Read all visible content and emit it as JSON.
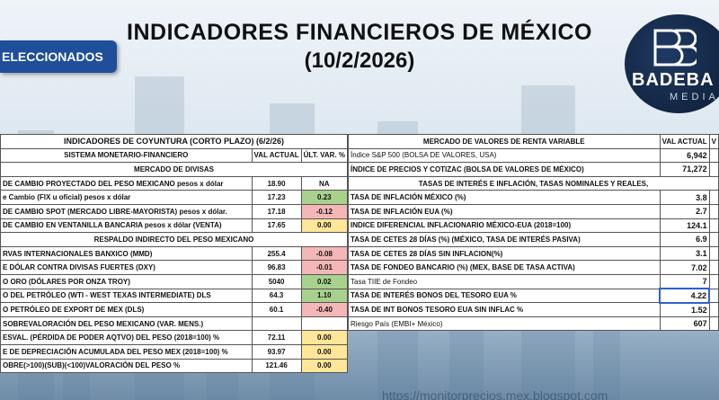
{
  "header": {
    "title": "INDICADORES FINANCIEROS DE MÉXICO",
    "date": "(10/2/2026)",
    "banner": "ELECCIONADOS"
  },
  "logo": {
    "brand": "BADEBA",
    "sub": "MEDIA"
  },
  "left_table": {
    "title": "INDICADORES DE COYUNTURA (CORTO PLAZO) (6/2/26)",
    "sys_label": "SISTEMA MONETARIO-FINANCIERO",
    "col_val": "VAL ACTUAL",
    "col_var": "ÚLT. VAR. %",
    "sections": [
      {
        "name": "MERCADO DE DIVISAS"
      },
      {
        "name": "RESPALDO INDIRECTO DEL PESO MEXICANO"
      }
    ],
    "rows": [
      {
        "label": "DE CAMBIO PROYECTADO DEL PESO MEXICANO pesos x dólar",
        "val": "18.90",
        "var": "NA",
        "color": "none"
      },
      {
        "label": "e Cambio (FIX u oficial) pesos x dólar",
        "val": "17.23",
        "var": "0.23",
        "color": "green"
      },
      {
        "label": "DE CAMBIO SPOT (MERCADO LIBRE-MAYORISTA) pesos x dólar.",
        "val": "17.18",
        "var": "-0.12",
        "color": "red"
      },
      {
        "label": "DE CAMBIO EN VENTANILLA BANCARIA pesos x dólar (VENTA)",
        "val": "17.65",
        "var": "0.00",
        "color": "yellow"
      },
      {
        "label": "RVAS INTERNACIONALES BANXICO (MMD)",
        "val": "255.4",
        "var": "-0.08",
        "color": "red"
      },
      {
        "label": "E DÓLAR CONTRA DIVISAS FUERTES (DXY)",
        "val": "96.83",
        "var": "-0.01",
        "color": "red"
      },
      {
        "label": "O ORO (DÓLARES POR ONZA TROY)",
        "val": "5040",
        "var": "0.02",
        "color": "green"
      },
      {
        "label": "O DEL PETRÓLEO (WTI - WEST TEXAS INTERMEDIATE) DLS",
        "val": "64.3",
        "var": "1.10",
        "color": "green"
      },
      {
        "label": "O PETRÓLEO DE EXPORT DE MEX (DLS)",
        "val": "60.1",
        "var": "-0.40",
        "color": "red"
      },
      {
        "label": "SOBREVALORACIÓN DEL PESO MEXICANO (VAR. MENS.)",
        "val": "",
        "var": "",
        "color": "none"
      },
      {
        "label": "ESVAL. (PÉRDIDA DE PODER AQTVO) DEL PESO (2018=100) %",
        "val": "72.11",
        "var": "0.00",
        "color": "yellow"
      },
      {
        "label": "E DE DEPRECIACIÓN ACUMULADA DEL PESO MEX (2018=100) %",
        "val": "93.97",
        "var": "0.00",
        "color": "yellow"
      },
      {
        "label": "OBRE(>100)(SUB)(<100)VALORACIÓN DEL PESO  %",
        "val": "121.46",
        "var": "0.00",
        "color": "yellow"
      }
    ]
  },
  "right_table": {
    "title": "MERCADO DE VALORES DE RENTA VARIABLE",
    "col_val": "VAL ACTUAL",
    "col_extra": "V",
    "rows": [
      {
        "label": "Índice S&P 500 (BOLSA DE VALORES, USA)",
        "val": "6,942",
        "bold": false
      },
      {
        "label": "ÍNDICE DE PRECIOS Y COTIZAC (BOLSA DE VALORES DE MÉXICO)",
        "val": "71,272",
        "bold": true
      },
      {
        "label": "TASAS DE INTERÉS E INFLACIÓN, TASAS NOMINALES Y REALES,",
        "val": "",
        "bold": true,
        "section": true
      },
      {
        "label": "TASA DE INFLACIÓN MÉXICO (%)",
        "val": "3.8",
        "bold": true
      },
      {
        "label": "TASA DE INFLACIÓN EUA (%)",
        "val": "2.7",
        "bold": true
      },
      {
        "label": "INDICE DIFERENCIAL INFLACIONARIO MÉXICO-EUA (2018=100)",
        "val": "124.1",
        "bold": true
      },
      {
        "label": "TASA DE CETES 28 DÍAS (%) (MÉXICO, TASA DE INTERÉS PASIVA)",
        "val": "6.9",
        "bold": true
      },
      {
        "label": "TASA DE CETES 28 DÍAS SIN INFLACION(%)",
        "val": "3.1",
        "bold": true
      },
      {
        "label": "TASA DE FONDEO BANCARIO (%) (MEX, BASE DE TASA ACTIVA)",
        "val": "7.02",
        "bold": true
      },
      {
        "label": "Tasa TIIE de Fondeo",
        "val": "7",
        "bold": false
      },
      {
        "label": "TASA DE INTERÉS BONOS DEL TESORO EUA %",
        "val": "4.22",
        "bold": true
      },
      {
        "label": "TASA DE INT BONOS TESORO EUA SIN INFLAC %",
        "val": "1.52",
        "bold": true
      },
      {
        "label": "Riesgo País (EMBI+ México)",
        "val": "607",
        "bold": false
      }
    ]
  },
  "footer": {
    "url": "https://monitorprecios.mex.blogspot.com"
  },
  "colors": {
    "green": "#a9d18e",
    "red": "#f4b6b6",
    "yellow": "#ffe699",
    "banner": "#1f4e9b"
  }
}
